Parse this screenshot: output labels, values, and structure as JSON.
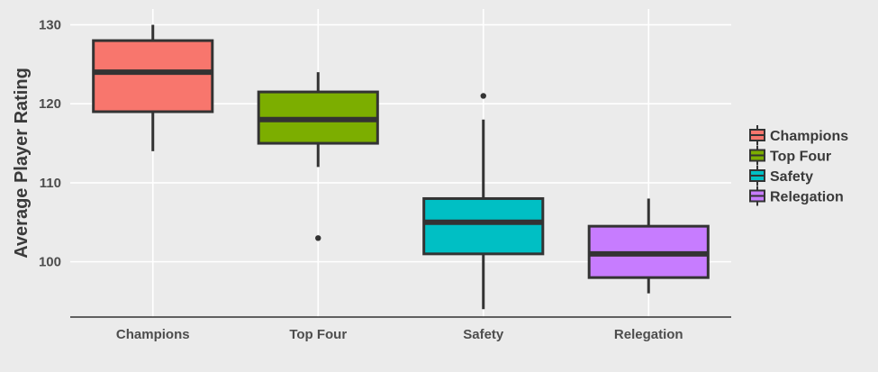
{
  "chart_data": {
    "type": "boxplot",
    "title": "",
    "xlabel": "",
    "ylabel": "Average Player Rating",
    "ylim": [
      93,
      132
    ],
    "yticks": [
      100,
      110,
      120,
      130
    ],
    "categories": [
      "Champions",
      "Top Four",
      "Safety",
      "Relegation"
    ],
    "boxes": [
      {
        "category": "Champions",
        "whisker_low": 114,
        "q1": 119,
        "median": 124,
        "q3": 128,
        "whisker_high": 130,
        "outliers": []
      },
      {
        "category": "Top Four",
        "whisker_low": 112,
        "q1": 115,
        "median": 118,
        "q3": 121.5,
        "whisker_high": 124,
        "outliers": [
          103
        ]
      },
      {
        "category": "Safety",
        "whisker_low": 94,
        "q1": 101,
        "median": 105,
        "q3": 108,
        "whisker_high": 118,
        "outliers": [
          121
        ]
      },
      {
        "category": "Relegation",
        "whisker_low": 96,
        "q1": 98,
        "median": 101,
        "q3": 104.5,
        "whisker_high": 108,
        "outliers": []
      }
    ],
    "colors": [
      "#f8766d",
      "#7cae00",
      "#00bfc4",
      "#c77cff"
    ],
    "grid": true,
    "legend": {
      "position": "right",
      "entries": [
        "Champions",
        "Top Four",
        "Safety",
        "Relegation"
      ]
    }
  }
}
